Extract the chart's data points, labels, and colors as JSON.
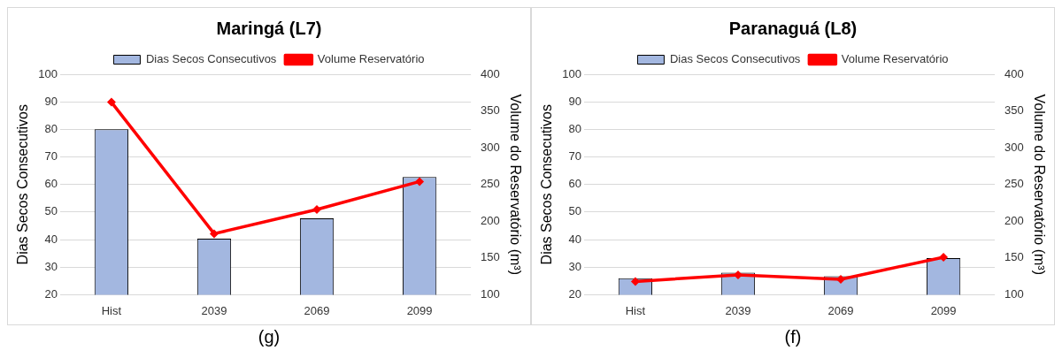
{
  "chart_data": [
    {
      "type": "bar",
      "title": "Maringá (L7)",
      "categories": [
        "Hist",
        "2039",
        "2069",
        "2099"
      ],
      "ylabel": "Dias Secos Consecutivos",
      "y2label": "Volume do Reservatório (m³)",
      "series": [
        {
          "name": "Dias Secos Consecutivos",
          "color": "#a3b7e0",
          "values": [
            80,
            40.3,
            47.7,
            62.7
          ]
        },
        {
          "name": "Volume Reservatório",
          "type": "line",
          "axis": "y2",
          "color": "#ff0000",
          "values": [
            362,
            183,
            216,
            254
          ]
        }
      ],
      "ylim": [
        20,
        100
      ],
      "yticks": [
        20,
        30,
        40,
        50,
        60,
        70,
        80,
        90,
        100
      ],
      "y2lim": [
        100,
        400
      ],
      "y2ticks": [
        100,
        150,
        200,
        250,
        300,
        350,
        400
      ],
      "grid": "y",
      "legend": "top",
      "marker": "diamond",
      "line_style": "solid",
      "annotations": [
        "(g)"
      ]
    },
    {
      "type": "bar",
      "title": "Paranaguá (L8)",
      "categories": [
        "Hist",
        "2039",
        "2069",
        "2099"
      ],
      "ylabel": "Dias Secos Consecutivos",
      "y2label": "Volume do Reservatório (m³)",
      "series": [
        {
          "name": "Dias Secos Consecutivos",
          "color": "#a3b7e0",
          "values": [
            26,
            28,
            26.7,
            33.3
          ]
        },
        {
          "name": "Volume Reservatório",
          "type": "line",
          "axis": "y2",
          "color": "#ff0000",
          "values": [
            118,
            127,
            121,
            151
          ]
        }
      ],
      "ylim": [
        20,
        100
      ],
      "yticks": [
        20,
        30,
        40,
        50,
        60,
        70,
        80,
        90,
        100
      ],
      "y2lim": [
        100,
        400
      ],
      "y2ticks": [
        100,
        150,
        200,
        250,
        300,
        350,
        400
      ],
      "grid": "y",
      "legend": "top",
      "marker": "diamond",
      "line_style": "solid",
      "annotations": [
        "(f)"
      ]
    }
  ]
}
